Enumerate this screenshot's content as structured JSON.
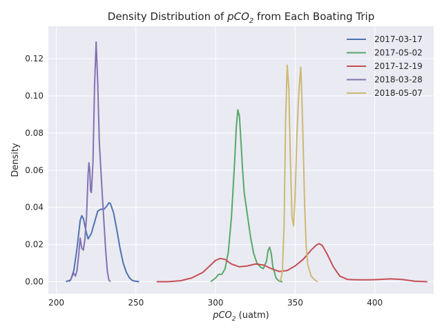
{
  "chart_data": {
    "type": "line",
    "title_prefix": "Density Distribution of ",
    "title_var": "pCO",
    "title_sub": "2",
    "title_suffix": " from Each Boating Trip",
    "xlabel_var": "pCO",
    "xlabel_sub": "2",
    "xlabel_suffix": " (uatm)",
    "ylabel": "Density",
    "xlim": [
      195,
      437
    ],
    "ylim": [
      -0.0065,
      0.1375
    ],
    "xticks": [
      200,
      250,
      300,
      350,
      400
    ],
    "yticks": [
      0.0,
      0.02,
      0.04,
      0.06,
      0.08,
      0.1,
      0.12
    ],
    "ytick_labels": [
      "0.00",
      "0.02",
      "0.04",
      "0.06",
      "0.08",
      "0.10",
      "0.12"
    ],
    "grid": true,
    "background": "#EAEAF2",
    "legend_position": "top-right",
    "series": [
      {
        "name": "2017-03-17",
        "color": "#4C72B0",
        "points": [
          [
            206,
            0
          ],
          [
            209,
            0.001
          ],
          [
            211,
            0.006
          ],
          [
            213,
            0.018
          ],
          [
            215,
            0.033
          ],
          [
            216,
            0.0355
          ],
          [
            217,
            0.034
          ],
          [
            219,
            0.026
          ],
          [
            220,
            0.023
          ],
          [
            222,
            0.026
          ],
          [
            224,
            0.032
          ],
          [
            226,
            0.038
          ],
          [
            228,
            0.039
          ],
          [
            230,
            0.039
          ],
          [
            232,
            0.041
          ],
          [
            233,
            0.0425
          ],
          [
            234,
            0.042
          ],
          [
            236,
            0.037
          ],
          [
            238,
            0.028
          ],
          [
            240,
            0.018
          ],
          [
            242,
            0.01
          ],
          [
            244,
            0.005
          ],
          [
            246,
            0.002
          ],
          [
            248,
            0.0005
          ],
          [
            252,
            0
          ]
        ]
      },
      {
        "name": "2017-05-02",
        "color": "#55A868",
        "points": [
          [
            297,
            0
          ],
          [
            300,
            0.002
          ],
          [
            302,
            0.004
          ],
          [
            304,
            0.004
          ],
          [
            306,
            0.007
          ],
          [
            308,
            0.016
          ],
          [
            310,
            0.035
          ],
          [
            312,
            0.065
          ],
          [
            313,
            0.083
          ],
          [
            314,
            0.0925
          ],
          [
            315,
            0.089
          ],
          [
            316,
            0.075
          ],
          [
            317,
            0.06
          ],
          [
            318,
            0.048
          ],
          [
            320,
            0.036
          ],
          [
            322,
            0.024
          ],
          [
            324,
            0.015
          ],
          [
            326,
            0.01
          ],
          [
            328,
            0.008
          ],
          [
            330,
            0.007
          ],
          [
            332,
            0.011
          ],
          [
            333,
            0.017
          ],
          [
            334,
            0.0185
          ],
          [
            335,
            0.015
          ],
          [
            336,
            0.008
          ],
          [
            338,
            0.002
          ],
          [
            340,
            0.0002
          ],
          [
            342,
            0
          ]
        ]
      },
      {
        "name": "2017-12-19",
        "color": "#C44E52",
        "points": [
          [
            263,
            0
          ],
          [
            270,
            0
          ],
          [
            278,
            0.0005
          ],
          [
            285,
            0.002
          ],
          [
            292,
            0.005
          ],
          [
            297,
            0.009
          ],
          [
            300,
            0.0115
          ],
          [
            303,
            0.0125
          ],
          [
            306,
            0.012
          ],
          [
            310,
            0.0095
          ],
          [
            315,
            0.008
          ],
          [
            320,
            0.0085
          ],
          [
            325,
            0.0095
          ],
          [
            330,
            0.009
          ],
          [
            335,
            0.007
          ],
          [
            340,
            0.0055
          ],
          [
            345,
            0.006
          ],
          [
            350,
            0.0085
          ],
          [
            355,
            0.012
          ],
          [
            360,
            0.017
          ],
          [
            363,
            0.0195
          ],
          [
            365,
            0.0205
          ],
          [
            367,
            0.0195
          ],
          [
            370,
            0.015
          ],
          [
            374,
            0.008
          ],
          [
            378,
            0.003
          ],
          [
            383,
            0.0012
          ],
          [
            390,
            0.001
          ],
          [
            397,
            0.001
          ],
          [
            403,
            0.0012
          ],
          [
            410,
            0.0015
          ],
          [
            417,
            0.0012
          ],
          [
            425,
            0.0003
          ],
          [
            433,
            0
          ]
        ]
      },
      {
        "name": "2018-03-28",
        "color": "#8172B2",
        "points": [
          [
            208,
            0
          ],
          [
            209,
            0.001
          ],
          [
            210,
            0.003
          ],
          [
            211,
            0.0045
          ],
          [
            212,
            0.003
          ],
          [
            213,
            0.006
          ],
          [
            214,
            0.014
          ],
          [
            215,
            0.0235
          ],
          [
            216,
            0.018
          ],
          [
            217,
            0.017
          ],
          [
            218,
            0.023
          ],
          [
            219,
            0.035
          ],
          [
            220,
            0.058
          ],
          [
            220.5,
            0.064
          ],
          [
            221,
            0.06
          ],
          [
            221.5,
            0.049
          ],
          [
            222,
            0.048
          ],
          [
            223,
            0.064
          ],
          [
            224,
            0.105
          ],
          [
            225,
            0.129
          ],
          [
            226,
            0.107
          ],
          [
            227,
            0.075
          ],
          [
            228,
            0.06
          ],
          [
            229,
            0.045
          ],
          [
            230,
            0.031
          ],
          [
            231,
            0.017
          ],
          [
            232,
            0.006
          ],
          [
            233,
            0.001
          ],
          [
            234,
            0
          ]
        ]
      },
      {
        "name": "2018-05-07",
        "color": "#CCB974",
        "points": [
          [
            340,
            0
          ],
          [
            341,
            0.001
          ],
          [
            342,
            0.006
          ],
          [
            343,
            0.03
          ],
          [
            344,
            0.088
          ],
          [
            345,
            0.1165
          ],
          [
            346,
            0.104
          ],
          [
            347,
            0.065
          ],
          [
            348,
            0.035
          ],
          [
            349,
            0.03
          ],
          [
            350,
            0.047
          ],
          [
            351,
            0.076
          ],
          [
            352,
            0.097
          ],
          [
            353,
            0.11
          ],
          [
            353.5,
            0.1155
          ],
          [
            354,
            0.105
          ],
          [
            355,
            0.075
          ],
          [
            356,
            0.04
          ],
          [
            357,
            0.018
          ],
          [
            358,
            0.009
          ],
          [
            360,
            0.003
          ],
          [
            362,
            0.0012
          ],
          [
            364,
            0
          ]
        ]
      }
    ]
  }
}
